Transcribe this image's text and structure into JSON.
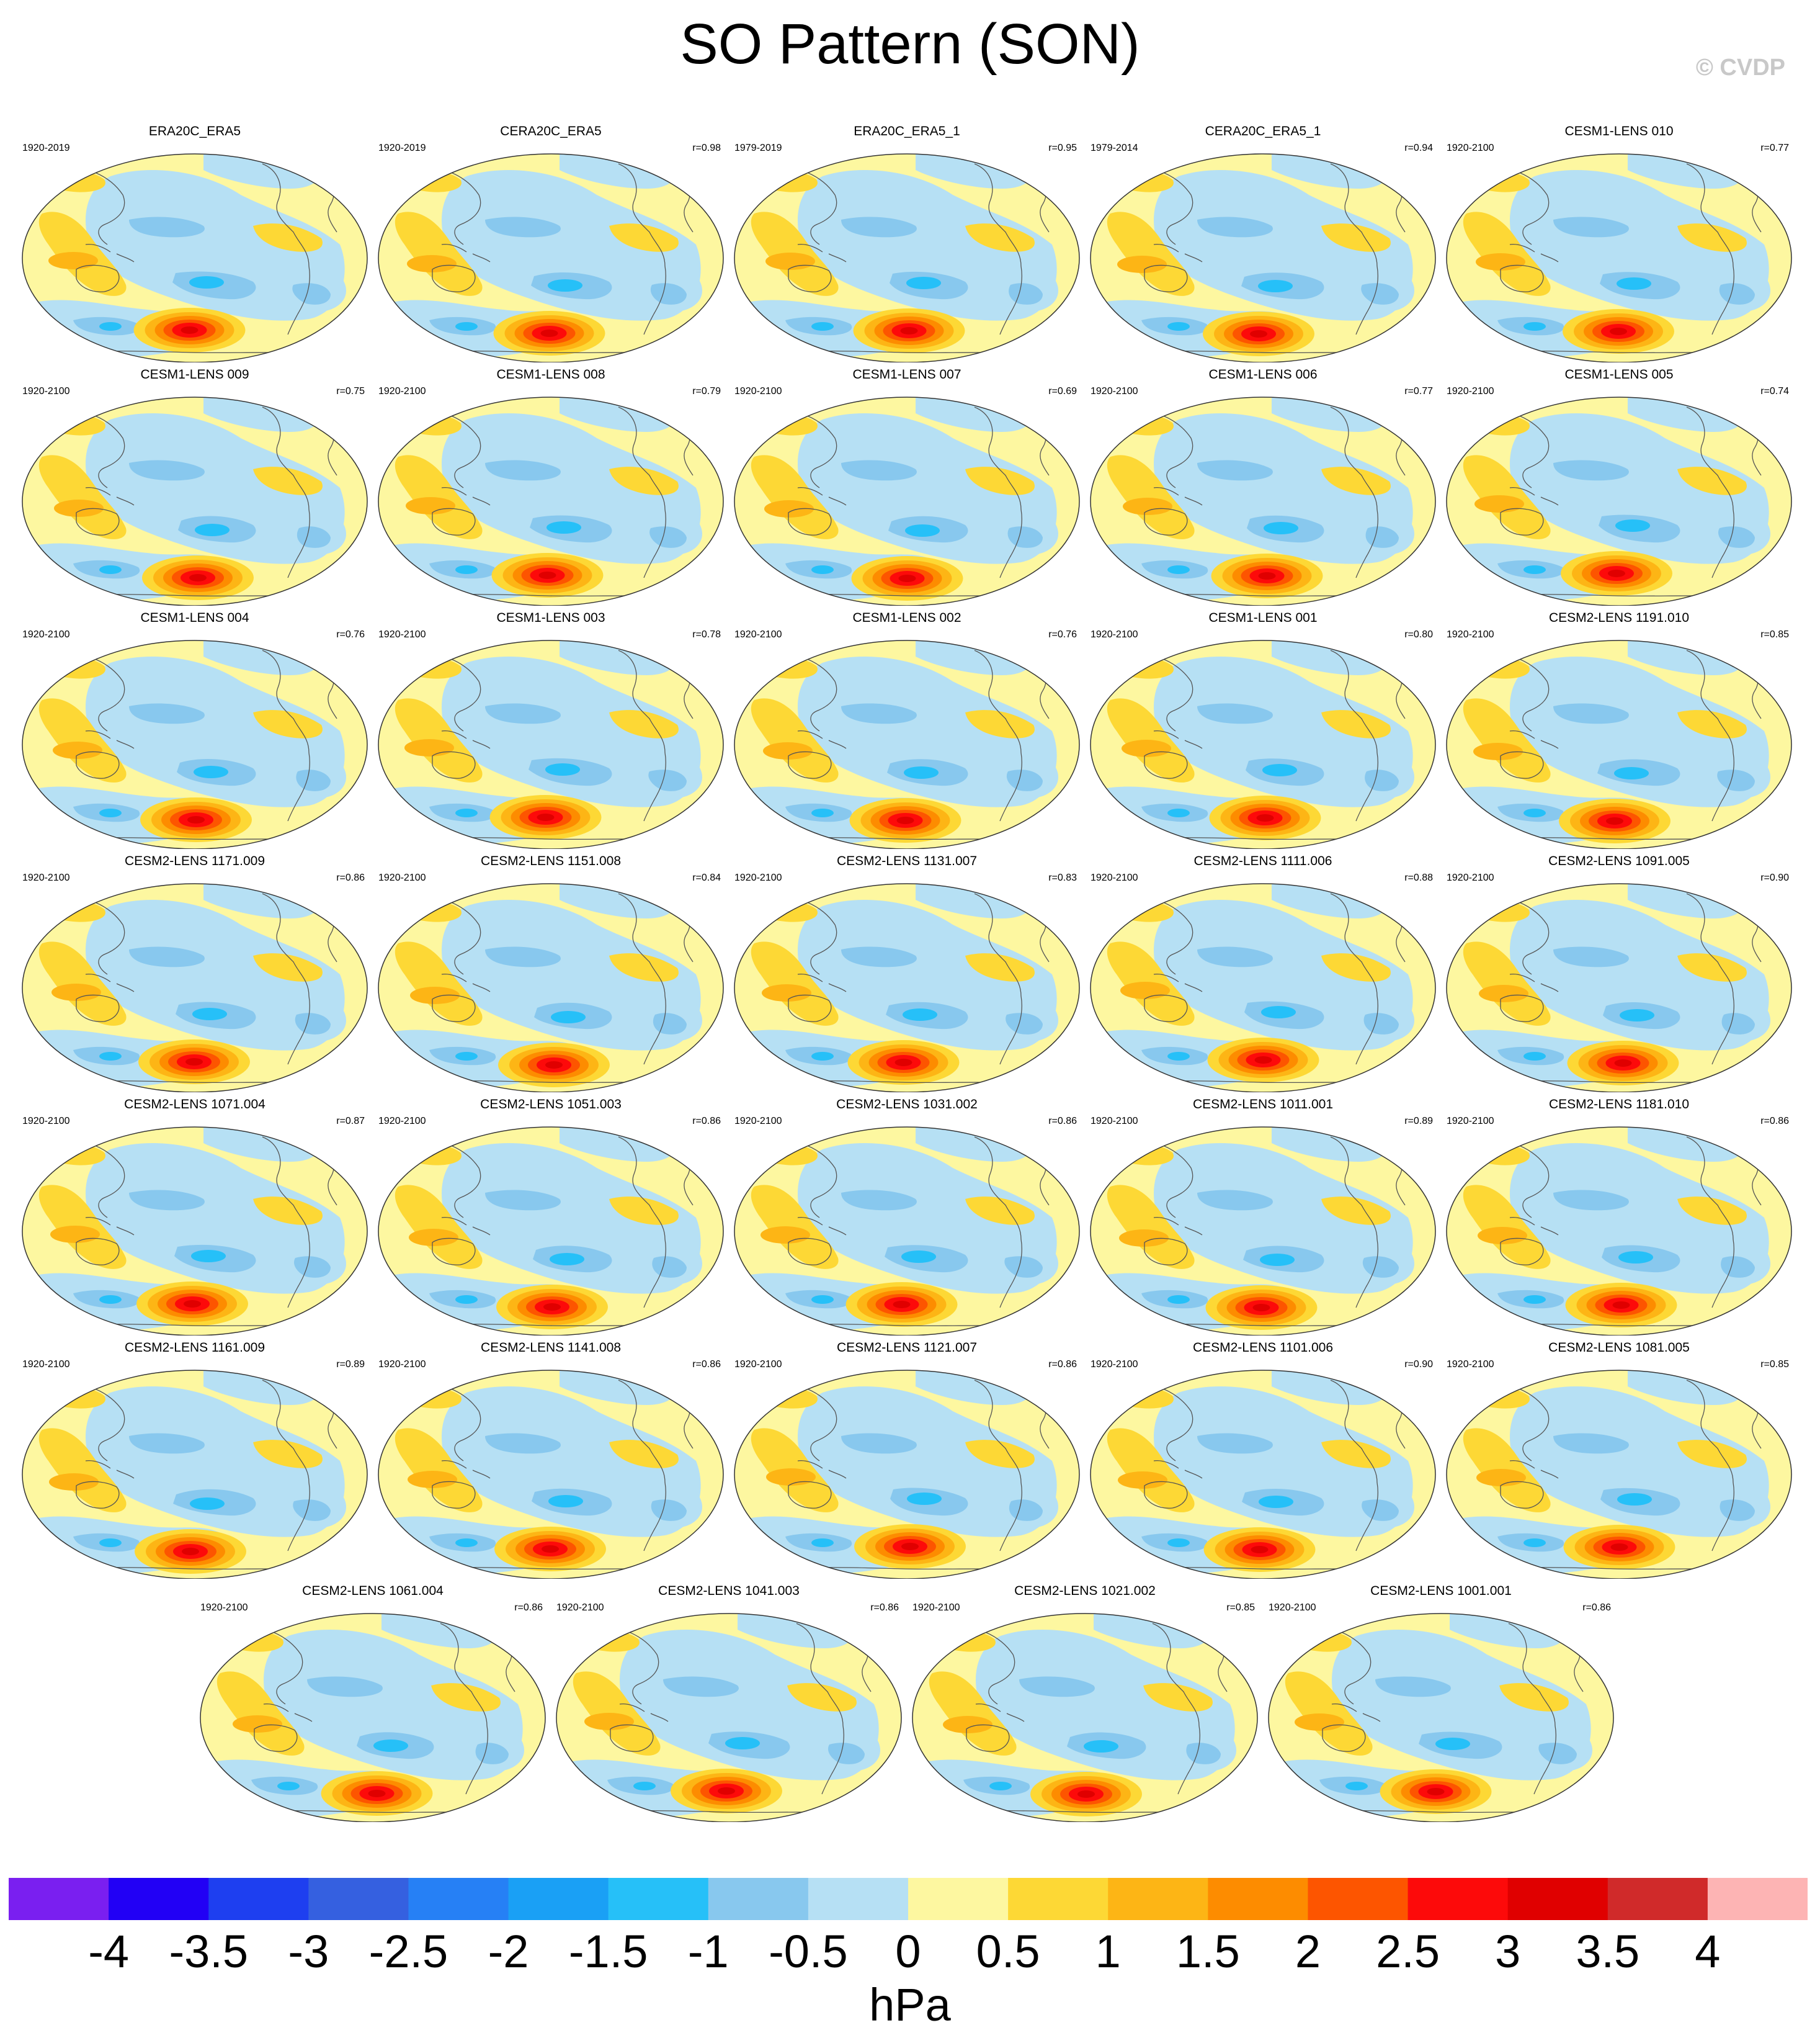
{
  "page": {
    "title": "SO Pattern (SON)",
    "copyright": "© CVDP"
  },
  "chart_data": {
    "type": "heatmap",
    "title": "SO Pattern (SON)",
    "projection": "Robinson-style global maps, Pacific-centered",
    "colorbar": {
      "unit": "hPa",
      "ticks": [
        "-4",
        "-3.5",
        "-3",
        "-2.5",
        "-2",
        "-1.5",
        "-1",
        "-0.5",
        "0",
        "0.5",
        "1",
        "1.5",
        "2",
        "2.5",
        "3",
        "3.5",
        "4"
      ],
      "colors": [
        "#7a1ff0",
        "#2200f5",
        "#1e3ff0",
        "#3560e0",
        "#2680f5",
        "#1aa0f5",
        "#26c0f8",
        "#88c8ee",
        "#b6e0f4",
        "#fdf7a0",
        "#fdd835",
        "#fdb515",
        "#fd8c00",
        "#fd5500",
        "#fd0a0a",
        "#e00000",
        "#d02a2a",
        "#fdb4b4"
      ]
    },
    "panels": [
      {
        "name": "ERA20C_ERA5",
        "years": "1920-2019",
        "r": ""
      },
      {
        "name": "CERA20C_ERA5",
        "years": "1920-2019",
        "r": "r=0.98"
      },
      {
        "name": "ERA20C_ERA5_1",
        "years": "1979-2019",
        "r": "r=0.95"
      },
      {
        "name": "CERA20C_ERA5_1",
        "years": "1979-2014",
        "r": "r=0.94"
      },
      {
        "name": "CESM1-LENS 010",
        "years": "1920-2100",
        "r": "r=0.77"
      },
      {
        "name": "CESM1-LENS 009",
        "years": "1920-2100",
        "r": "r=0.75"
      },
      {
        "name": "CESM1-LENS 008",
        "years": "1920-2100",
        "r": "r=0.79"
      },
      {
        "name": "CESM1-LENS 007",
        "years": "1920-2100",
        "r": "r=0.69"
      },
      {
        "name": "CESM1-LENS 006",
        "years": "1920-2100",
        "r": "r=0.77"
      },
      {
        "name": "CESM1-LENS 005",
        "years": "1920-2100",
        "r": "r=0.74"
      },
      {
        "name": "CESM1-LENS 004",
        "years": "1920-2100",
        "r": "r=0.76"
      },
      {
        "name": "CESM1-LENS 003",
        "years": "1920-2100",
        "r": "r=0.78"
      },
      {
        "name": "CESM1-LENS 002",
        "years": "1920-2100",
        "r": "r=0.76"
      },
      {
        "name": "CESM1-LENS 001",
        "years": "1920-2100",
        "r": "r=0.80"
      },
      {
        "name": "CESM2-LENS 1191.010",
        "years": "1920-2100",
        "r": "r=0.85"
      },
      {
        "name": "CESM2-LENS 1171.009",
        "years": "1920-2100",
        "r": "r=0.86"
      },
      {
        "name": "CESM2-LENS 1151.008",
        "years": "1920-2100",
        "r": "r=0.84"
      },
      {
        "name": "CESM2-LENS 1131.007",
        "years": "1920-2100",
        "r": "r=0.83"
      },
      {
        "name": "CESM2-LENS 1111.006",
        "years": "1920-2100",
        "r": "r=0.88"
      },
      {
        "name": "CESM2-LENS 1091.005",
        "years": "1920-2100",
        "r": "r=0.90"
      },
      {
        "name": "CESM2-LENS 1071.004",
        "years": "1920-2100",
        "r": "r=0.87"
      },
      {
        "name": "CESM2-LENS 1051.003",
        "years": "1920-2100",
        "r": "r=0.86"
      },
      {
        "name": "CESM2-LENS 1031.002",
        "years": "1920-2100",
        "r": "r=0.86"
      },
      {
        "name": "CESM2-LENS 1011.001",
        "years": "1920-2100",
        "r": "r=0.89"
      },
      {
        "name": "CESM2-LENS 1181.010",
        "years": "1920-2100",
        "r": "r=0.86"
      },
      {
        "name": "CESM2-LENS 1161.009",
        "years": "1920-2100",
        "r": "r=0.89"
      },
      {
        "name": "CESM2-LENS 1141.008",
        "years": "1920-2100",
        "r": "r=0.86"
      },
      {
        "name": "CESM2-LENS 1121.007",
        "years": "1920-2100",
        "r": "r=0.86"
      },
      {
        "name": "CESM2-LENS 1101.006",
        "years": "1920-2100",
        "r": "r=0.90"
      },
      {
        "name": "CESM2-LENS 1081.005",
        "years": "1920-2100",
        "r": "r=0.85"
      },
      {
        "name": "CESM2-LENS 1061.004",
        "years": "1920-2100",
        "r": "r=0.86"
      },
      {
        "name": "CESM2-LENS 1041.003",
        "years": "1920-2100",
        "r": "r=0.86"
      },
      {
        "name": "CESM2-LENS 1021.002",
        "years": "1920-2100",
        "r": "r=0.85"
      },
      {
        "name": "CESM2-LENS 1001.001",
        "years": "1920-2100",
        "r": "r=0.86"
      }
    ]
  }
}
